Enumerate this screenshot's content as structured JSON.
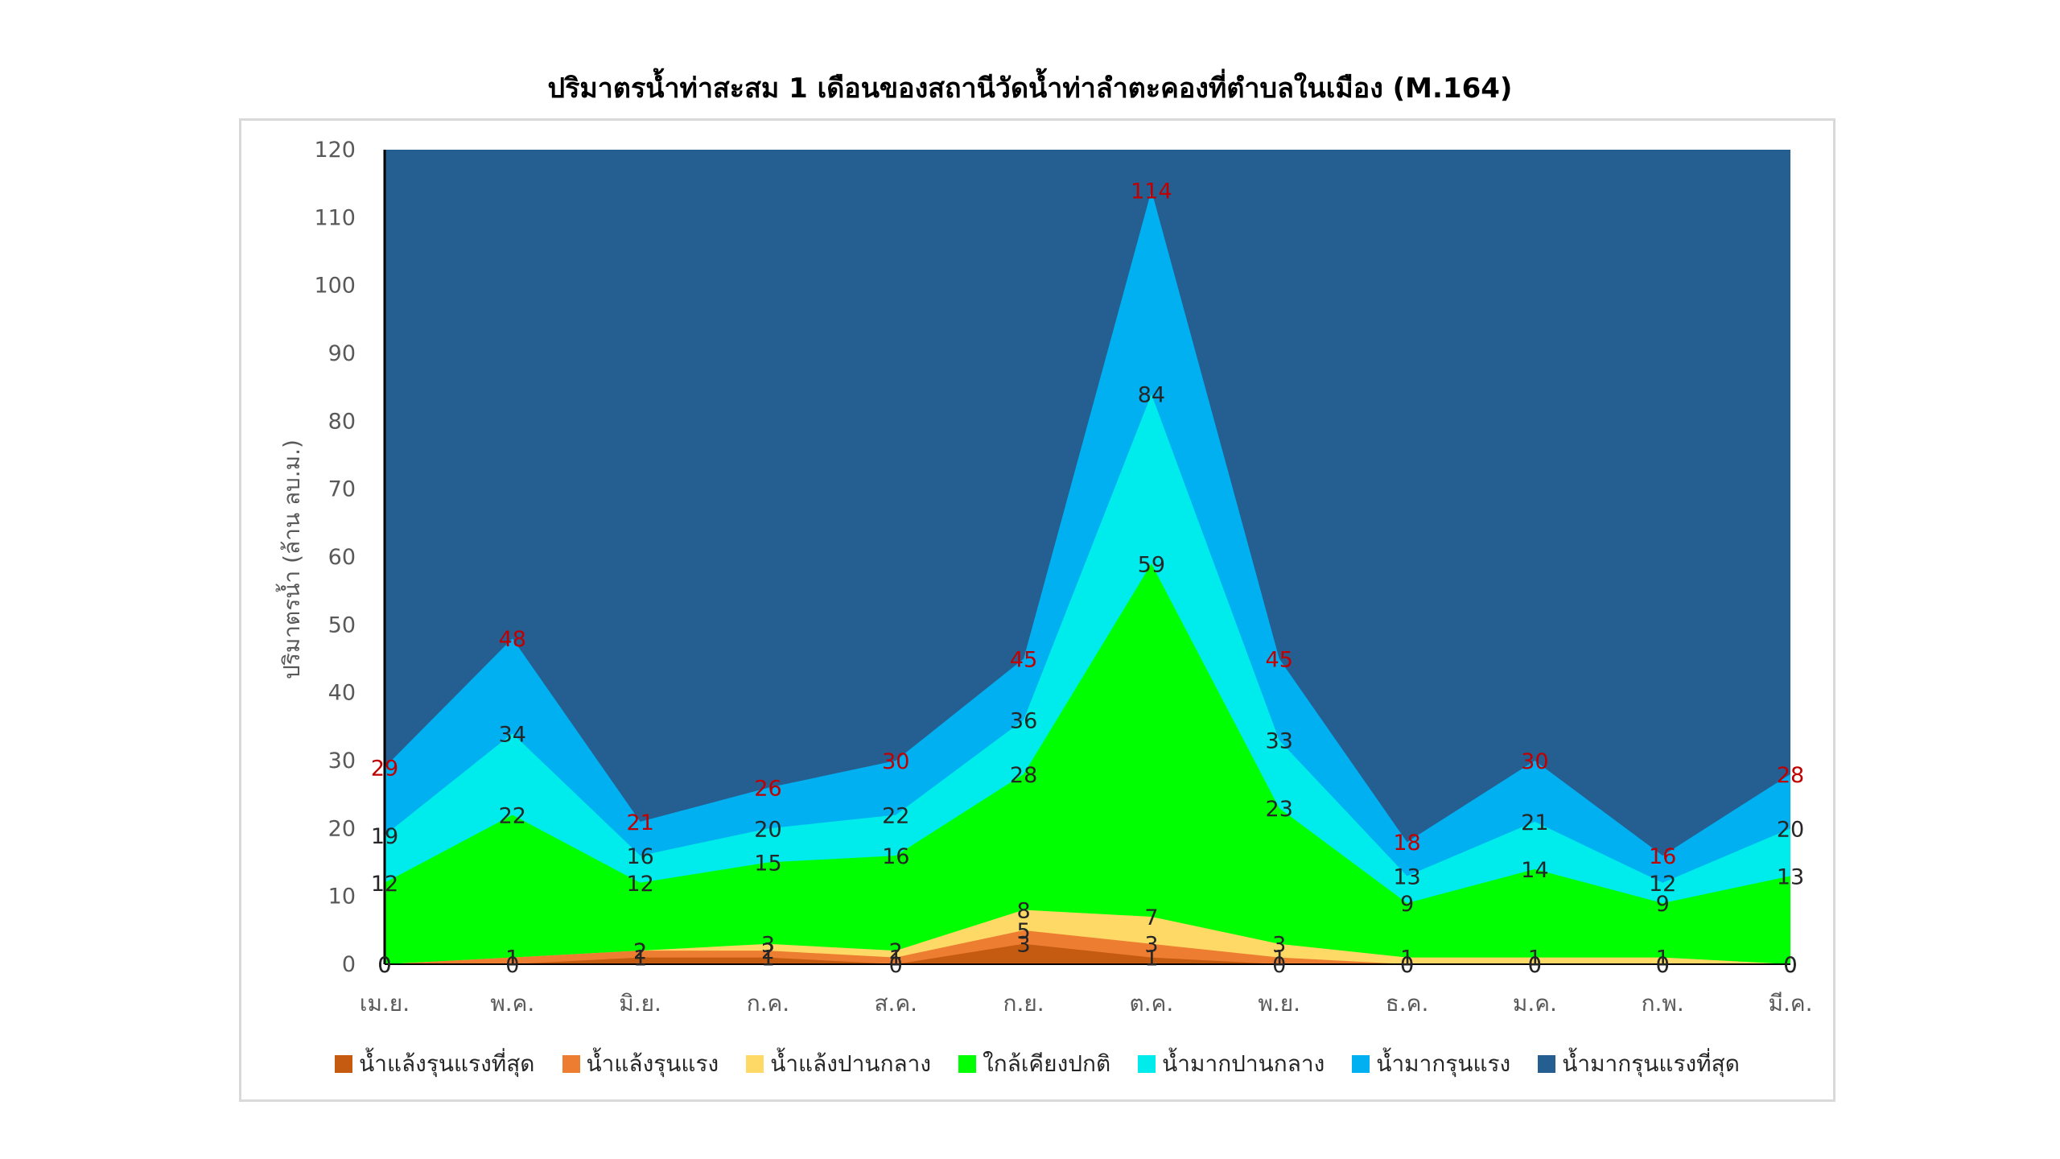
{
  "chart_data": {
    "type": "area",
    "title": "ปริมาตรน้ำท่าสะสม 1 เดือนของสถานีวัดน้ำท่าลำตะคองที่ตำบลในเมือง (M.164)",
    "xlabel": "",
    "ylabel": "ปริมาตรน้ำ (ล้าน ลบ.ม.)",
    "ylim": [
      0,
      120
    ],
    "yticks": [
      "0",
      "10",
      "20",
      "30",
      "40",
      "50",
      "60",
      "70",
      "80",
      "90",
      "100",
      "110",
      "120"
    ],
    "categories": [
      "เม.ย.",
      "พ.ค.",
      "มิ.ย.",
      "ก.ค.",
      "ส.ค.",
      "ก.ย.",
      "ต.ค.",
      "พ.ย.",
      "ธ.ค.",
      "ม.ค.",
      "ก.พ.",
      "มี.ค."
    ],
    "legend_position": "bottom",
    "grid": false,
    "series": [
      {
        "name": "น้ำแล้งรุนแรงที่สุด",
        "color": "#c55a11",
        "values": [
          0,
          0,
          1,
          1,
          0,
          3,
          1,
          0,
          0,
          0,
          0,
          0
        ]
      },
      {
        "name": "น้ำแล้งรุนแรง",
        "color": "#ed7d31",
        "values": [
          0,
          1,
          2,
          2,
          1,
          5,
          3,
          1,
          0,
          0,
          0,
          0
        ]
      },
      {
        "name": "น้ำแล้งปานกลาง",
        "color": "#ffd966",
        "values": [
          0,
          1,
          2,
          3,
          2,
          8,
          7,
          3,
          1,
          1,
          1,
          0
        ]
      },
      {
        "name": "ใกล้เคียงปกติ",
        "color": "#00ff00",
        "values": [
          12,
          22,
          12,
          15,
          16,
          28,
          59,
          23,
          9,
          14,
          9,
          13
        ]
      },
      {
        "name": "น้ำมากปานกลาง",
        "color": "#00ebeb",
        "values": [
          19,
          34,
          16,
          20,
          22,
          36,
          84,
          33,
          13,
          21,
          12,
          20
        ]
      },
      {
        "name": "น้ำมากรุนแรง",
        "color": "#00b0f0",
        "values": [
          29,
          48,
          21,
          26,
          30,
          45,
          114,
          45,
          18,
          30,
          16,
          28
        ]
      },
      {
        "name": "น้ำมากรุนแรงที่สุด",
        "color": "#255e91",
        "values": [
          120,
          120,
          120,
          120,
          120,
          120,
          120,
          120,
          120,
          120,
          120,
          120
        ]
      }
    ],
    "data_labels": {
      "น้ำแล้งรุนแรงที่สุด": [
        "0",
        "0",
        "1",
        "1",
        "0",
        "3",
        "1",
        "0",
        "0",
        "0",
        "0",
        "0"
      ],
      "น้ำแล้งรุนแรง": [
        "0",
        "1",
        "2",
        "2",
        "1",
        "5",
        "3",
        "1",
        "0",
        "0",
        "0",
        "0"
      ],
      "น้ำแล้งปานกลาง": [
        "0",
        "1",
        "2",
        "3",
        "2",
        "8",
        "7",
        "3",
        "1",
        "1",
        "1",
        "0"
      ],
      "ใกล้เคียงปกติ": [
        "12",
        "22",
        "12",
        "15",
        "16",
        "28",
        "59",
        "23",
        "9",
        "14",
        "9",
        "13"
      ],
      "น้ำมากปานกลาง": [
        "19",
        "34",
        "16",
        "20",
        "22",
        "36",
        "84",
        "33",
        "13",
        "21",
        "12",
        "20"
      ],
      "น้ำมากรุนแรง": [
        "29",
        "48",
        "21",
        "26",
        "30",
        "45",
        "114",
        "45",
        "18",
        "30",
        "16",
        "28"
      ]
    },
    "label_colors": {
      "default": "#262626",
      "highlight": "#c00000"
    }
  }
}
